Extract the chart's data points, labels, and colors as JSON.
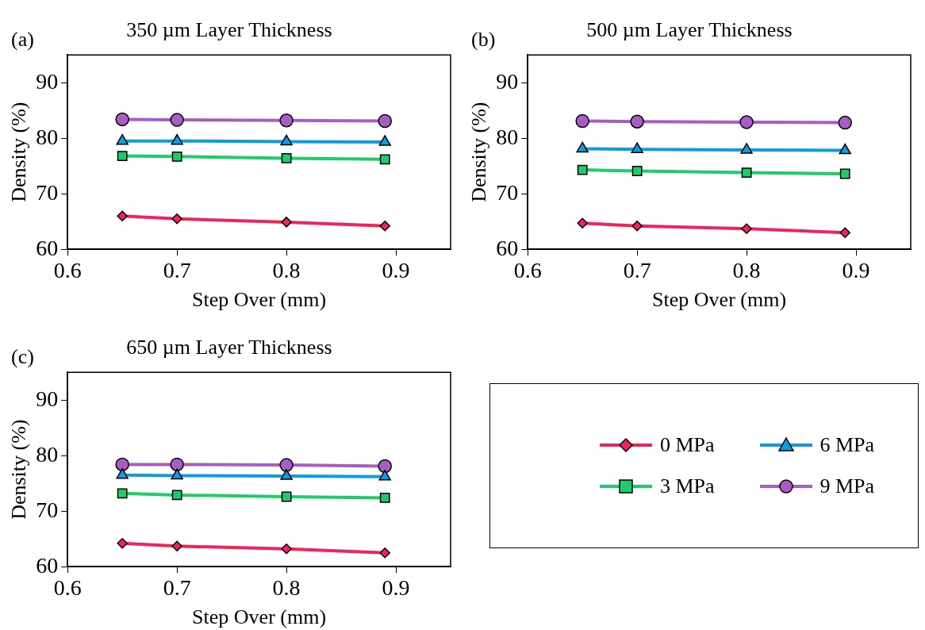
{
  "chart_data": [
    {
      "type": "line",
      "title": "350 µm Layer Thickness",
      "xlabel": "Step Over (mm)",
      "ylabel": "Density (%)",
      "annotations": [
        "(a)"
      ],
      "x": [
        0.65,
        0.7,
        0.8,
        0.89
      ],
      "xlim": [
        0.6,
        0.95
      ],
      "xticks": [
        0.6,
        0.7,
        0.8,
        0.9
      ],
      "ylim": [
        60,
        95
      ],
      "yticks": [
        60,
        70,
        80,
        90
      ],
      "grid": false,
      "legend": false,
      "series": [
        {
          "color": "#f0245a",
          "marker": "diamond",
          "values": [
            66.0,
            65.5,
            64.9,
            64.2
          ]
        },
        {
          "color": "#1ccd6a",
          "marker": "square",
          "values": [
            76.8,
            76.7,
            76.4,
            76.2
          ]
        },
        {
          "color": "#0d9ddf",
          "marker": "triangle",
          "values": [
            79.5,
            79.5,
            79.4,
            79.3
          ]
        },
        {
          "color": "#a95cc3",
          "marker": "circle",
          "values": [
            83.4,
            83.3,
            83.2,
            83.1
          ]
        }
      ]
    },
    {
      "type": "line",
      "title": "500 µm Layer Thickness",
      "xlabel": "Step Over (mm)",
      "ylabel": "Density (%)",
      "annotations": [
        "(b)"
      ],
      "x": [
        0.65,
        0.7,
        0.8,
        0.89
      ],
      "xlim": [
        0.6,
        0.95
      ],
      "xticks": [
        0.6,
        0.7,
        0.8,
        0.9
      ],
      "ylim": [
        60,
        95
      ],
      "yticks": [
        60,
        70,
        80,
        90
      ],
      "grid": false,
      "legend": false,
      "series": [
        {
          "color": "#f0245a",
          "marker": "diamond",
          "values": [
            64.7,
            64.2,
            63.7,
            63.0
          ]
        },
        {
          "color": "#1ccd6a",
          "marker": "square",
          "values": [
            74.3,
            74.1,
            73.8,
            73.6
          ]
        },
        {
          "color": "#0d9ddf",
          "marker": "triangle",
          "values": [
            78.1,
            78.0,
            77.9,
            77.8
          ]
        },
        {
          "color": "#a95cc3",
          "marker": "circle",
          "values": [
            83.1,
            83.0,
            82.9,
            82.8
          ]
        }
      ]
    },
    {
      "type": "line",
      "title": "650 µm Layer Thickness",
      "xlabel": "Step Over (mm)",
      "ylabel": "Density (%)",
      "annotations": [
        "(c)"
      ],
      "x": [
        0.65,
        0.7,
        0.8,
        0.89
      ],
      "xlim": [
        0.6,
        0.95
      ],
      "xticks": [
        0.6,
        0.7,
        0.8,
        0.9
      ],
      "ylim": [
        60,
        95
      ],
      "yticks": [
        60,
        70,
        80,
        90
      ],
      "grid": false,
      "legend": "right",
      "series": [
        {
          "name": "0 MPa",
          "color": "#f0245a",
          "marker": "diamond",
          "values": [
            64.2,
            63.7,
            63.2,
            62.5
          ]
        },
        {
          "name": "3 MPa",
          "color": "#1ccd6a",
          "marker": "square",
          "values": [
            73.2,
            72.9,
            72.6,
            72.4
          ]
        },
        {
          "name": "6 MPa",
          "color": "#0d9ddf",
          "marker": "triangle",
          "values": [
            76.5,
            76.4,
            76.3,
            76.2
          ]
        },
        {
          "name": "9 MPa",
          "color": "#a95cc3",
          "marker": "circle",
          "values": [
            78.4,
            78.4,
            78.3,
            78.1
          ]
        }
      ]
    }
  ]
}
